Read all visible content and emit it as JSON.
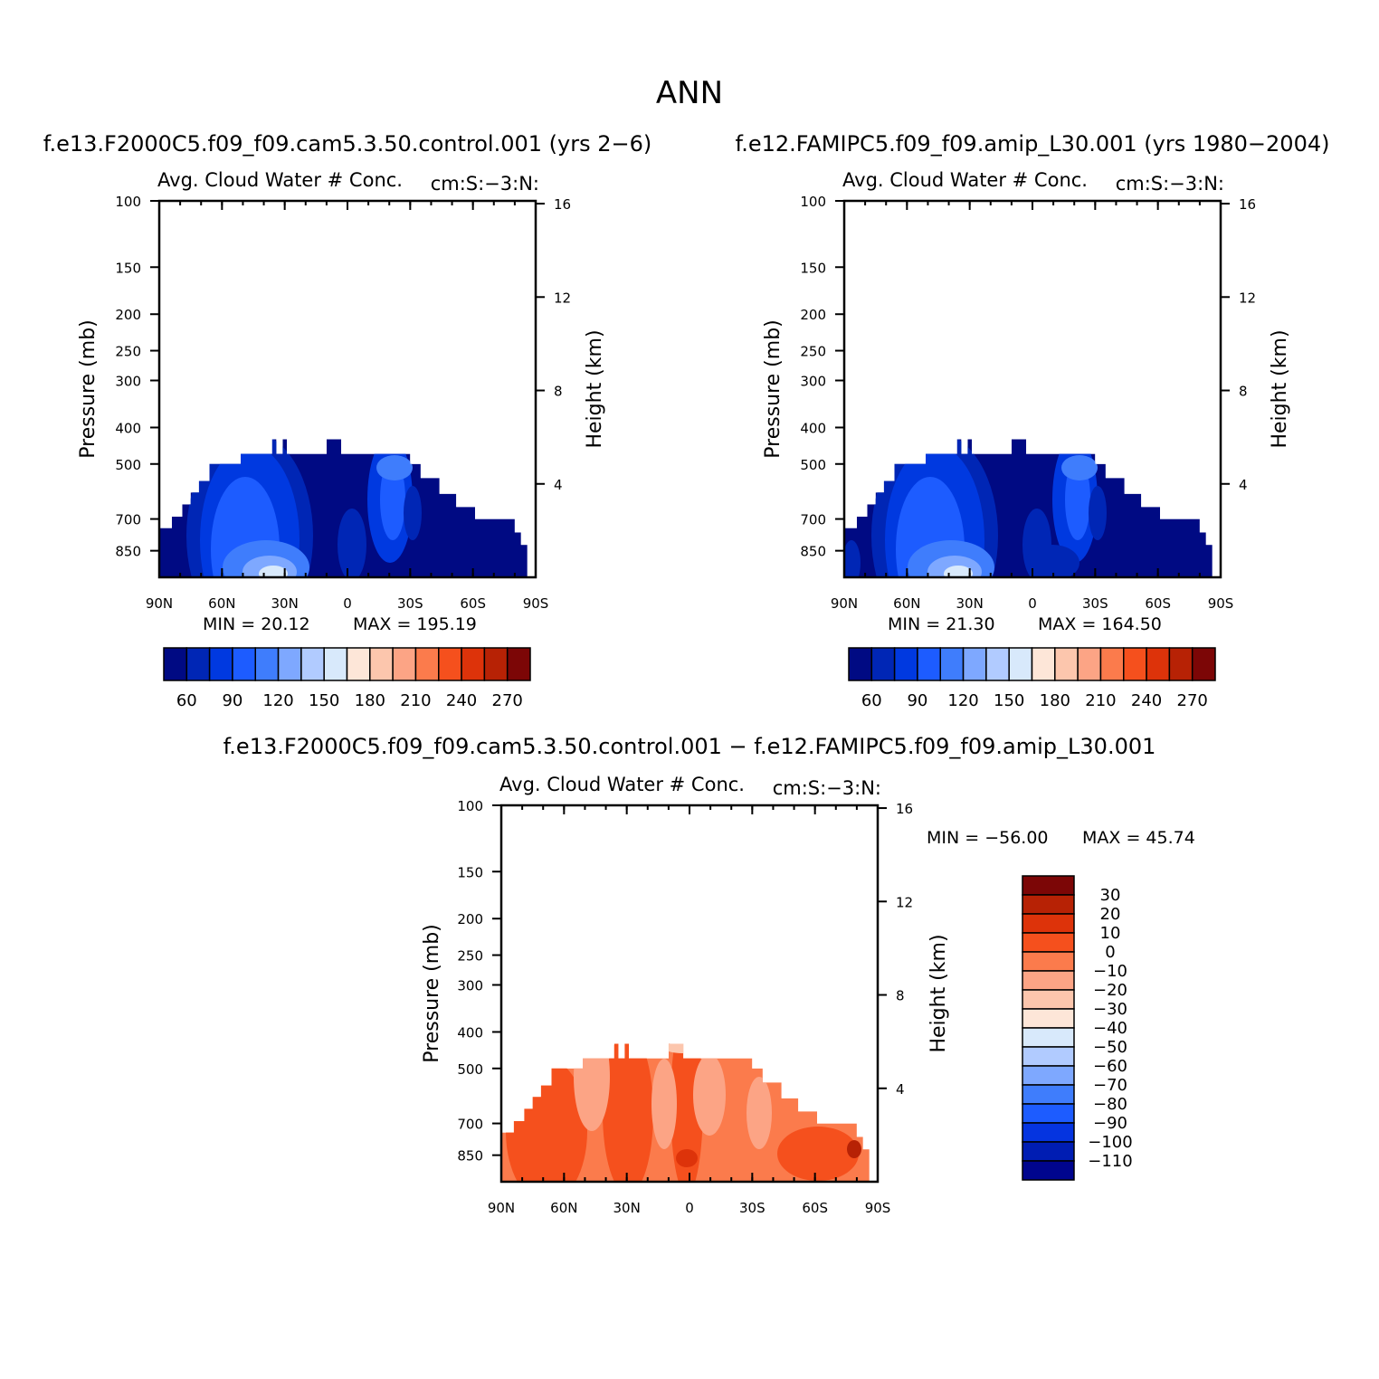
{
  "title": "ANN",
  "colors": {
    "abs_levels": [
      "#000a83",
      "#0026b5",
      "#0039e0",
      "#1d5cff",
      "#3f7dfc",
      "#7ea8ff",
      "#b1cbff",
      "#d8e9fb",
      "#fde6d8",
      "#fcc6ad",
      "#fca485",
      "#fb7b4c",
      "#f5501d",
      "#dd330a",
      "#b72205",
      "#7c0606"
    ],
    "diff_levels": [
      "#00058e",
      "#001db3",
      "#0534e0",
      "#1d5cff",
      "#3f7dfc",
      "#7ea8ff",
      "#b1cbff",
      "#d8e9fb",
      "#fde6d8",
      "#fcc6ad",
      "#fca485",
      "#fb7b4c",
      "#f5501d",
      "#dd330a",
      "#b72205",
      "#7c0606"
    ],
    "abs_background": "#000a83",
    "diff_background": "#fb7b4c"
  },
  "chart_data": [
    {
      "type": "heatmap",
      "id": "panel1",
      "case_title": "f.e13.F2000C5.f09_f09.cam5.3.50.control.001 (yrs 2−6)",
      "left_title": "Avg. Cloud Water # Conc.",
      "right_title": "cm:S:−3:N:",
      "ylabel": "Pressure (mb)",
      "ylabel2": "Height (km)",
      "x_ticks": [
        "90N",
        "60N",
        "30N",
        "0",
        "30S",
        "60S",
        "90S"
      ],
      "y_ticks": [
        "100",
        "150",
        "200",
        "250",
        "300",
        "400",
        "500",
        "700",
        "850"
      ],
      "y_ticks_values": [
        100,
        150,
        200,
        250,
        300,
        400,
        500,
        700,
        850
      ],
      "y2_ticks": [
        "16",
        "12",
        "8",
        "4"
      ],
      "ylim": [
        100,
        1000
      ],
      "min_text": "MIN =   20.12",
      "max_text": "MAX =  195.19",
      "colorbar_labels": [
        "60",
        "90",
        "120",
        "150",
        "180",
        "210",
        "240",
        "270"
      ],
      "field": "abs"
    },
    {
      "type": "heatmap",
      "id": "panel2",
      "case_title": "f.e12.FAMIPC5.f09_f09.amip_L30.001 (yrs 1980−2004)",
      "left_title": "Avg. Cloud Water # Conc.",
      "right_title": "cm:S:−3:N:",
      "ylabel": "Pressure (mb)",
      "ylabel2": "Height (km)",
      "x_ticks": [
        "90N",
        "60N",
        "30N",
        "0",
        "30S",
        "60S",
        "90S"
      ],
      "y_ticks": [
        "100",
        "150",
        "200",
        "250",
        "300",
        "400",
        "500",
        "700",
        "850"
      ],
      "y_ticks_values": [
        100,
        150,
        200,
        250,
        300,
        400,
        500,
        700,
        850
      ],
      "y2_ticks": [
        "16",
        "12",
        "8",
        "4"
      ],
      "ylim": [
        100,
        1000
      ],
      "min_text": "MIN =   21.30",
      "max_text": "MAX =  164.50",
      "colorbar_labels": [
        "60",
        "90",
        "120",
        "150",
        "180",
        "210",
        "240",
        "270"
      ],
      "field": "abs"
    },
    {
      "type": "heatmap",
      "id": "panel3",
      "case_title": "f.e13.F2000C5.f09_f09.cam5.3.50.control.001 − f.e12.FAMIPC5.f09_f09.amip_L30.001",
      "left_title": "Avg. Cloud Water # Conc.",
      "right_title": "cm:S:−3:N:",
      "ylabel": "Pressure (mb)",
      "ylabel2": "Height (km)",
      "x_ticks": [
        "90N",
        "60N",
        "30N",
        "0",
        "30S",
        "60S",
        "90S"
      ],
      "y_ticks": [
        "100",
        "150",
        "200",
        "250",
        "300",
        "400",
        "500",
        "700",
        "850"
      ],
      "y_ticks_values": [
        100,
        150,
        200,
        250,
        300,
        400,
        500,
        700,
        850
      ],
      "y2_ticks": [
        "16",
        "12",
        "8",
        "4"
      ],
      "ylim": [
        100,
        1000
      ],
      "min_text": "MIN = −56.00",
      "max_text": "MAX =   45.74",
      "colorbar_labels": [
        "30",
        "20",
        "10",
        "0",
        "−10",
        "−20",
        "−30",
        "−40",
        "−50",
        "−60",
        "−70",
        "−80",
        "−90",
        "−100",
        "−110"
      ],
      "field": "diff"
    }
  ]
}
